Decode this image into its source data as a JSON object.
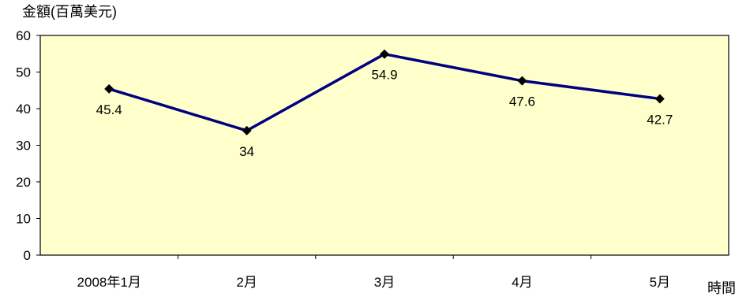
{
  "chart_data": {
    "type": "line",
    "ylabel": "金額(百萬美元)",
    "xlabel": "時間",
    "categories": [
      "2008年1月",
      "2月",
      "3月",
      "4月",
      "5月"
    ],
    "series": [
      {
        "values": [
          45.4,
          34,
          54.9,
          47.6,
          42.7
        ]
      }
    ],
    "data_labels": [
      "45.4",
      "34",
      "54.9",
      "47.6",
      "42.7"
    ],
    "ylim": [
      0,
      60
    ],
    "yticks": [
      0,
      10,
      20,
      30,
      40,
      50,
      60
    ],
    "grid": false,
    "legend": "none",
    "colors": {
      "plot_background": "#ffffcc",
      "line": "#000080",
      "marker": "#000000",
      "axis": "#000000"
    }
  }
}
